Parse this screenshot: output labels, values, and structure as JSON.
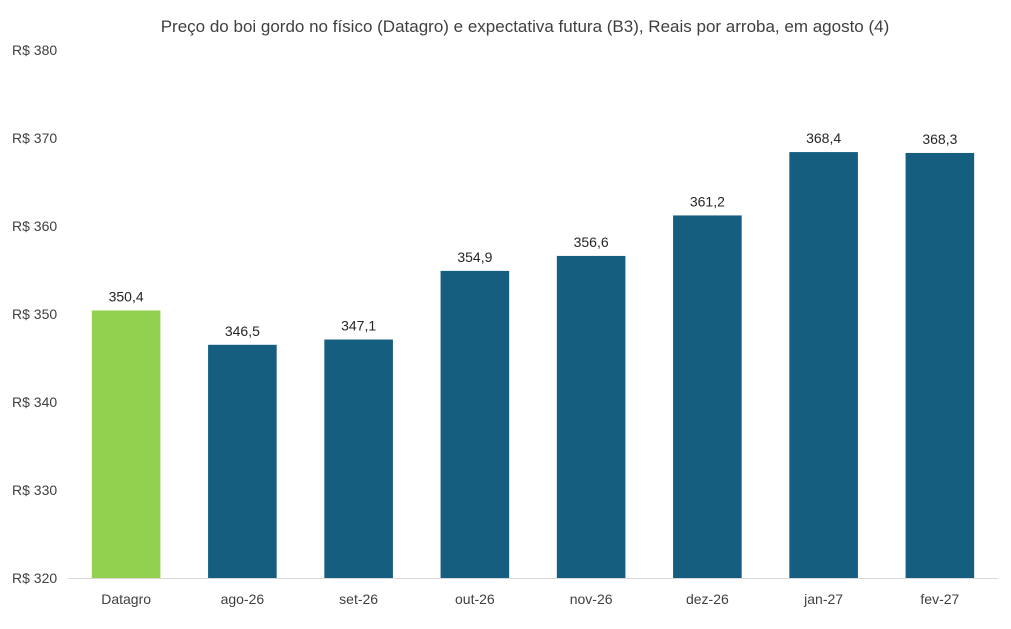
{
  "chart_data": {
    "type": "bar",
    "title": "Preço do boi gordo no físico (Datagro)  e expectativa futura (B3), Reais por arroba, em agosto (4)",
    "categories": [
      "Datagro",
      "ago-26",
      "set-26",
      "out-26",
      "nov-26",
      "dez-26",
      "jan-27",
      "fev-27"
    ],
    "values": [
      350.4,
      346.5,
      347.1,
      354.9,
      356.6,
      361.2,
      368.4,
      368.3
    ],
    "value_labels": [
      "350,4",
      "346,5",
      "347,1",
      "354,9",
      "356,6",
      "361,2",
      "368,4",
      "368,3"
    ],
    "bar_colors": [
      "#92d050",
      "#155e80",
      "#155e80",
      "#155e80",
      "#155e80",
      "#155e80",
      "#155e80",
      "#155e80"
    ],
    "ylim": [
      320,
      380
    ],
    "yticks": [
      320,
      330,
      340,
      350,
      360,
      370,
      380
    ],
    "ytick_labels": [
      "R$ 320",
      "R$ 330",
      "R$ 340",
      "R$ 350",
      "R$ 360",
      "R$ 370",
      "R$ 380"
    ],
    "xlabel": "",
    "ylabel": "",
    "grid": false,
    "legend": "none"
  }
}
